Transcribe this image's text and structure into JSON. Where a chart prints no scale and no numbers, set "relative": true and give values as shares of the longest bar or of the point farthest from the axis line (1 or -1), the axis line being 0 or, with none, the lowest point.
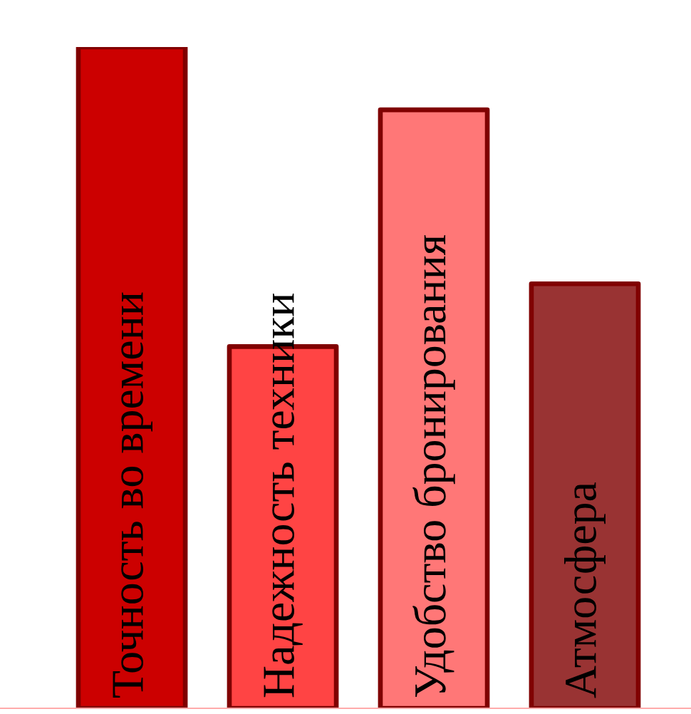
{
  "chart_data": {
    "type": "bar",
    "relative": true,
    "categories": [
      "Точность во времени",
      "Надежность техники",
      "Удобство бронирования",
      "Атмосфера"
    ],
    "values": [
      1,
      0.547,
      0.905,
      0.642
    ],
    "colors": [
      "#cc0000",
      "#ff4444",
      "#ff7777",
      "#993333"
    ],
    "legend": false
  }
}
